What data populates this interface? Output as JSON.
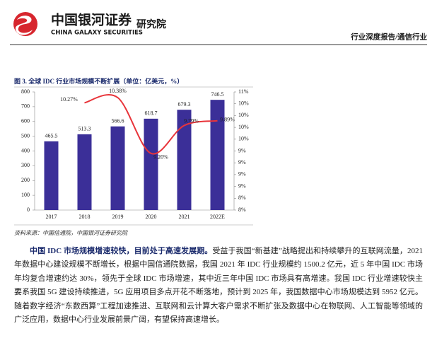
{
  "header": {
    "logo_cn": "中国银河证券",
    "logo_en": "CHINA GALAXY SECURITIES",
    "institute": "研究院",
    "report_type": "行业深度报告/通信行业"
  },
  "chart_data": {
    "type": "bar",
    "title": "图 3. 全球 IDC 行业市场规模不断扩展（单位：亿美元，%）",
    "source": "资料来源：中国信通院，中国银河证券研究院",
    "categories": [
      "2017",
      "2018",
      "2019",
      "2020",
      "2021",
      "2022E"
    ],
    "series": [
      {
        "type": "bar",
        "color": "#3b2f98",
        "values": [
          465.5,
          513.3,
          566.6,
          618.7,
          679.3,
          746.5
        ]
      },
      {
        "type": "line",
        "axis": "y2",
        "color": "#e8343a",
        "values": [
          null,
          10.27,
          10.38,
          9.2,
          9.79,
          9.89
        ],
        "value_labels": [
          null,
          "10.27%",
          "10.38%",
          "9.20%",
          "9.79%",
          "9.89%"
        ]
      }
    ],
    "ylim": [
      0,
      800
    ],
    "yticks": [
      0,
      100,
      200,
      300,
      400,
      500,
      600,
      700,
      800
    ],
    "y2lim": [
      8,
      10.5
    ],
    "y2ticks": [
      {
        "value": 8,
        "label": "8%"
      },
      {
        "value": 8.25,
        "label": "8%"
      },
      {
        "value": 8.5,
        "label": "9%"
      },
      {
        "value": 8.75,
        "label": "9%"
      },
      {
        "value": 9,
        "label": "9%"
      },
      {
        "value": 9.25,
        "label": "9%"
      },
      {
        "value": 9.5,
        "label": "10%"
      },
      {
        "value": 9.75,
        "label": "10%"
      },
      {
        "value": 10,
        "label": "10%"
      },
      {
        "value": 10.25,
        "label": "10%"
      },
      {
        "value": 10.5,
        "label": "11%"
      }
    ],
    "grid": false
  },
  "body": {
    "lead": "中国 IDC 市场规模增速较快，目前处于高速发展期。",
    "text": "受益于我国“新基建”战略提出和持续攀升的互联网流量，2021 年数据中心建设规模不断增长，根据中国信通院数据，我国 2021 年 IDC 行业规模约 1500.2 亿元，近 5 年中国 IDC 市场年均复合增速约达 30%，领先于全球 IDC 市场增速，其中近三年中国 IDC 市场具有高增速。我国 IDC 行业增速较快主要系我国 5G 建设持续推进，5G 应用项目多点开花不断落地，预计到 2025 年，我国数据中心市场规模达到 5952 亿元。随着数字经济“东数西算”工程加速推进、互联网和云计算大客户需求不断扩张及数据中心在物联网、人工智能等领域的广泛应用，数据中心行业发展前景广阔，有望保持高速增长。"
  }
}
